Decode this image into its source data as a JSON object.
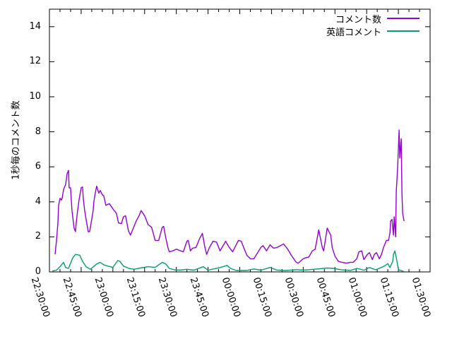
{
  "chart_data": {
    "type": "line",
    "title": "",
    "xlabel": "",
    "ylabel": "1秒毎のコメント数",
    "ylim": [
      0,
      15
    ],
    "y_ticks": [
      0,
      2,
      4,
      6,
      8,
      10,
      12,
      14
    ],
    "x_range": [
      "22:30:00",
      "01:30:00"
    ],
    "x_ticks": [
      "22:30:00",
      "22:45:00",
      "23:00:00",
      "23:15:00",
      "23:30:00",
      "23:45:00",
      "00:00:00",
      "00:15:00",
      "00:30:00",
      "00:45:00",
      "01:00:00",
      "01:15:00",
      "01:30:00"
    ],
    "x_minor_tick_minutes": 5,
    "grid": false,
    "legend_position": "top-right-inside",
    "axis_color": "#000000",
    "background_color": "#ffffff",
    "series": [
      {
        "name": "コメント数",
        "color": "#9400d3",
        "points": [
          [
            "22:32:40",
            1.0
          ],
          [
            "22:33:20",
            1.8
          ],
          [
            "22:34:00",
            2.8
          ],
          [
            "22:34:20",
            3.8
          ],
          [
            "22:35:00",
            4.2
          ],
          [
            "22:35:40",
            4.1
          ],
          [
            "22:36:00",
            4.2
          ],
          [
            "22:36:40",
            4.7
          ],
          [
            "22:37:40",
            5.0
          ],
          [
            "22:38:20",
            5.6
          ],
          [
            "22:39:00",
            5.8
          ],
          [
            "22:39:20",
            4.8
          ],
          [
            "22:40:00",
            4.8
          ],
          [
            "22:40:40",
            3.5
          ],
          [
            "22:41:40",
            2.5
          ],
          [
            "22:42:20",
            2.3
          ],
          [
            "22:42:40",
            2.8
          ],
          [
            "22:43:20",
            3.5
          ],
          [
            "22:44:00",
            4.1
          ],
          [
            "22:45:00",
            4.8
          ],
          [
            "22:45:40",
            4.85
          ],
          [
            "22:46:00",
            4.2
          ],
          [
            "22:46:40",
            3.5
          ],
          [
            "22:47:20",
            3.0
          ],
          [
            "22:48:20",
            2.3
          ],
          [
            "22:49:00",
            2.3
          ],
          [
            "22:50:00",
            3.0
          ],
          [
            "22:50:40",
            3.5
          ],
          [
            "22:51:00",
            4.0
          ],
          [
            "22:51:40",
            4.5
          ],
          [
            "22:52:20",
            4.9
          ],
          [
            "22:52:40",
            4.75
          ],
          [
            "22:53:20",
            4.5
          ],
          [
            "22:54:00",
            4.65
          ],
          [
            "22:55:00",
            4.4
          ],
          [
            "22:55:40",
            4.35
          ],
          [
            "22:56:40",
            3.8
          ],
          [
            "22:58:20",
            3.9
          ],
          [
            "23:00:00",
            3.6
          ],
          [
            "23:01:40",
            3.35
          ],
          [
            "23:02:40",
            2.8
          ],
          [
            "23:04:00",
            2.75
          ],
          [
            "23:05:00",
            3.15
          ],
          [
            "23:06:00",
            3.2
          ],
          [
            "23:07:20",
            2.35
          ],
          [
            "23:08:20",
            2.1
          ],
          [
            "23:10:00",
            2.6
          ],
          [
            "23:11:00",
            2.9
          ],
          [
            "23:12:20",
            3.2
          ],
          [
            "23:13:20",
            3.5
          ],
          [
            "23:15:00",
            3.2
          ],
          [
            "23:16:40",
            2.7
          ],
          [
            "23:18:20",
            2.55
          ],
          [
            "23:20:00",
            1.8
          ],
          [
            "23:21:40",
            1.8
          ],
          [
            "23:23:20",
            2.55
          ],
          [
            "23:24:00",
            2.6
          ],
          [
            "23:25:00",
            1.95
          ],
          [
            "23:26:00",
            1.4
          ],
          [
            "23:26:40",
            1.15
          ],
          [
            "23:28:20",
            1.2
          ],
          [
            "23:30:00",
            1.3
          ],
          [
            "23:32:00",
            1.2
          ],
          [
            "23:33:20",
            1.15
          ],
          [
            "23:35:00",
            1.75
          ],
          [
            "23:35:40",
            1.8
          ],
          [
            "23:36:40",
            1.2
          ],
          [
            "23:37:40",
            1.35
          ],
          [
            "23:39:20",
            1.4
          ],
          [
            "23:41:00",
            1.9
          ],
          [
            "23:42:20",
            2.2
          ],
          [
            "23:43:20",
            1.5
          ],
          [
            "23:44:20",
            1.0
          ],
          [
            "23:45:40",
            1.4
          ],
          [
            "23:47:20",
            1.75
          ],
          [
            "23:49:00",
            1.7
          ],
          [
            "23:50:40",
            1.2
          ],
          [
            "23:53:20",
            1.75
          ],
          [
            "23:55:00",
            1.4
          ],
          [
            "23:56:40",
            1.15
          ],
          [
            "23:59:20",
            1.8
          ],
          [
            "00:00:40",
            1.75
          ],
          [
            "00:03:20",
            0.95
          ],
          [
            "00:05:00",
            0.75
          ],
          [
            "00:06:40",
            0.75
          ],
          [
            "00:10:00",
            1.4
          ],
          [
            "00:11:00",
            1.5
          ],
          [
            "00:12:40",
            1.2
          ],
          [
            "00:14:20",
            1.55
          ],
          [
            "00:16:00",
            1.35
          ],
          [
            "00:17:40",
            1.4
          ],
          [
            "00:19:20",
            1.5
          ],
          [
            "00:20:40",
            1.6
          ],
          [
            "00:22:40",
            1.3
          ],
          [
            "00:24:20",
            0.95
          ],
          [
            "00:26:40",
            0.55
          ],
          [
            "00:27:40",
            0.5
          ],
          [
            "00:30:00",
            0.75
          ],
          [
            "00:31:00",
            0.8
          ],
          [
            "00:32:40",
            0.85
          ],
          [
            "00:34:20",
            1.2
          ],
          [
            "00:35:40",
            1.3
          ],
          [
            "00:37:20",
            2.4
          ],
          [
            "00:39:00",
            1.4
          ],
          [
            "00:39:40",
            1.2
          ],
          [
            "00:41:20",
            2.5
          ],
          [
            "00:43:00",
            2.1
          ],
          [
            "00:43:40",
            1.4
          ],
          [
            "00:45:00",
            0.9
          ],
          [
            "00:46:40",
            0.6
          ],
          [
            "00:48:20",
            0.55
          ],
          [
            "00:50:20",
            0.5
          ],
          [
            "00:52:20",
            0.55
          ],
          [
            "00:53:40",
            0.55
          ],
          [
            "00:55:20",
            0.75
          ],
          [
            "00:56:20",
            1.15
          ],
          [
            "00:57:40",
            1.2
          ],
          [
            "00:58:40",
            0.7
          ],
          [
            "01:00:20",
            1.0
          ],
          [
            "01:01:20",
            1.1
          ],
          [
            "01:02:40",
            0.7
          ],
          [
            "01:03:40",
            1.0
          ],
          [
            "01:04:40",
            1.1
          ],
          [
            "01:06:00",
            0.75
          ],
          [
            "01:07:00",
            1.0
          ],
          [
            "01:08:00",
            1.4
          ],
          [
            "01:09:20",
            1.8
          ],
          [
            "01:10:20",
            1.8
          ],
          [
            "01:11:00",
            2.2
          ],
          [
            "01:11:20",
            2.9
          ],
          [
            "01:12:00",
            3.0
          ],
          [
            "01:12:20",
            2.5
          ],
          [
            "01:12:40",
            2.1
          ],
          [
            "01:13:00",
            3.15
          ],
          [
            "01:13:40",
            2.0
          ],
          [
            "01:14:00",
            4.6
          ],
          [
            "01:14:40",
            6.0
          ],
          [
            "01:15:20",
            8.1
          ],
          [
            "01:15:40",
            6.5
          ],
          [
            "01:16:20",
            7.6
          ],
          [
            "01:16:40",
            4.5
          ],
          [
            "01:17:00",
            3.35
          ],
          [
            "01:17:40",
            2.9
          ]
        ]
      },
      {
        "name": "英語コメント",
        "color": "#009e73",
        "points": [
          [
            "22:31:20",
            0.05
          ],
          [
            "22:33:20",
            0.1
          ],
          [
            "22:35:00",
            0.3
          ],
          [
            "22:36:40",
            0.55
          ],
          [
            "22:37:40",
            0.25
          ],
          [
            "22:39:00",
            0.2
          ],
          [
            "22:41:00",
            0.8
          ],
          [
            "22:42:20",
            1.0
          ],
          [
            "22:44:20",
            0.95
          ],
          [
            "22:45:40",
            0.6
          ],
          [
            "22:47:20",
            0.3
          ],
          [
            "22:49:20",
            0.15
          ],
          [
            "22:52:20",
            0.45
          ],
          [
            "22:54:00",
            0.55
          ],
          [
            "22:55:40",
            0.4
          ],
          [
            "22:57:40",
            0.33
          ],
          [
            "23:00:00",
            0.26
          ],
          [
            "23:02:20",
            0.65
          ],
          [
            "23:03:20",
            0.6
          ],
          [
            "23:05:00",
            0.33
          ],
          [
            "23:07:40",
            0.2
          ],
          [
            "23:10:00",
            0.15
          ],
          [
            "23:12:00",
            0.2
          ],
          [
            "23:16:40",
            0.3
          ],
          [
            "23:20:00",
            0.26
          ],
          [
            "23:23:20",
            0.55
          ],
          [
            "23:25:00",
            0.45
          ],
          [
            "23:26:40",
            0.2
          ],
          [
            "23:29:00",
            0.12
          ],
          [
            "23:31:40",
            0.1
          ],
          [
            "23:35:00",
            0.15
          ],
          [
            "23:38:20",
            0.1
          ],
          [
            "23:41:40",
            0.25
          ],
          [
            "23:42:40",
            0.3
          ],
          [
            "23:45:00",
            0.1
          ],
          [
            "23:50:40",
            0.25
          ],
          [
            "23:54:00",
            0.37
          ],
          [
            "23:55:40",
            0.2
          ],
          [
            "23:58:20",
            0.08
          ],
          [
            "00:03:20",
            0.08
          ],
          [
            "00:06:40",
            0.17
          ],
          [
            "00:10:00",
            0.1
          ],
          [
            "00:14:20",
            0.25
          ],
          [
            "00:17:40",
            0.1
          ],
          [
            "00:21:40",
            0.08
          ],
          [
            "00:26:40",
            0.13
          ],
          [
            "00:30:00",
            0.1
          ],
          [
            "00:35:00",
            0.15
          ],
          [
            "00:41:20",
            0.22
          ],
          [
            "00:44:20",
            0.2
          ],
          [
            "00:47:40",
            0.13
          ],
          [
            "00:52:20",
            0.08
          ],
          [
            "00:55:20",
            0.2
          ],
          [
            "00:58:40",
            0.1
          ],
          [
            "01:01:20",
            0.25
          ],
          [
            "01:04:20",
            0.12
          ],
          [
            "01:08:20",
            0.33
          ],
          [
            "01:10:00",
            0.47
          ],
          [
            "01:11:00",
            0.25
          ],
          [
            "01:12:20",
            0.6
          ],
          [
            "01:12:40",
            1.0
          ],
          [
            "01:13:20",
            1.2
          ],
          [
            "01:14:20",
            0.6
          ],
          [
            "01:15:00",
            0.13
          ],
          [
            "01:17:40",
            0.02
          ]
        ]
      }
    ]
  }
}
